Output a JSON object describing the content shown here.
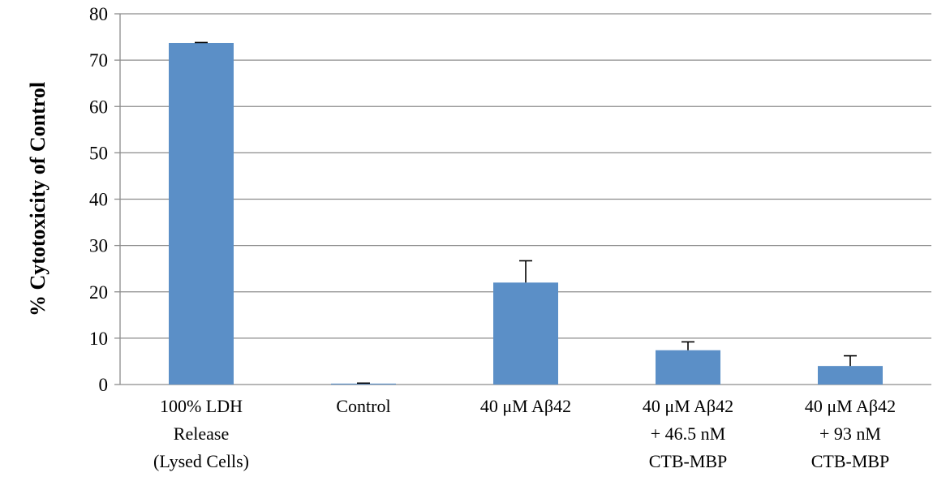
{
  "chart_data": {
    "type": "bar",
    "title": "",
    "xlabel": "",
    "ylabel": "% Cytotoxicity of Control",
    "ylim": [
      0,
      80
    ],
    "y_ticks": [
      0,
      10,
      20,
      30,
      40,
      50,
      60,
      70,
      80
    ],
    "grid": true,
    "categories": [
      [
        "100% LDH",
        "Release",
        "(Lysed Cells)"
      ],
      [
        "Control"
      ],
      [
        "40 μM Aβ42"
      ],
      [
        "40 μM Aβ42",
        "+ 46.5 nM",
        "CTB-MBP"
      ],
      [
        "40 μM Aβ42",
        "+ 93 nM",
        "CTB-MBP"
      ]
    ],
    "values": [
      73.7,
      0.2,
      22.0,
      7.4,
      4.0
    ],
    "error_upper": [
      0.1,
      0.1,
      4.7,
      1.8,
      2.2
    ],
    "colors": {
      "bar": "#5b8fc7",
      "grid": "#8c8c8c",
      "axis": "#8c8c8c",
      "error_bar": "#000000"
    }
  }
}
